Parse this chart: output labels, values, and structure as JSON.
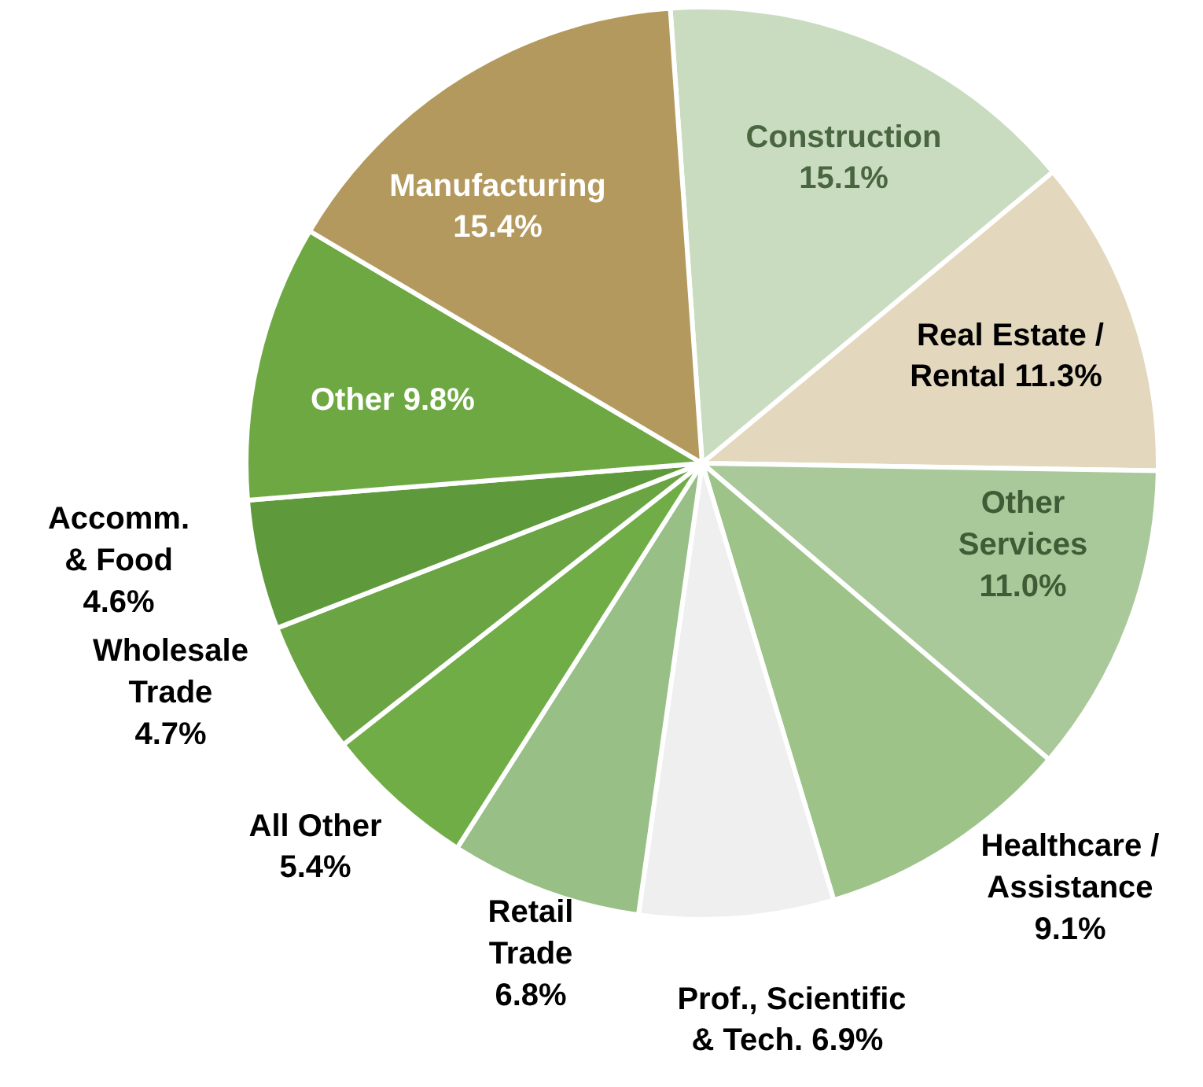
{
  "chart_data": {
    "type": "pie",
    "categories": [
      "Construction",
      "Real Estate /\nRental",
      "Other\nServices",
      "Healthcare /\nAssistance",
      "Prof., Scientific\n& Tech.",
      "Retail\nTrade",
      "All Other",
      "Wholesale\nTrade",
      "Accomm.\n& Food",
      "Other",
      "Manufacturing"
    ],
    "values": [
      15.1,
      11.3,
      11.0,
      9.1,
      6.9,
      6.8,
      5.4,
      4.7,
      4.6,
      9.8,
      15.4
    ],
    "colors": [
      "#c9dcc0",
      "#e3d7bd",
      "#a9c99a",
      "#9dc389",
      "#efefef",
      "#98bf86",
      "#70ad47",
      "#6aa443",
      "#5e9a3b",
      "#6ea843",
      "#b3995d"
    ],
    "value_labels": [
      "15.1%",
      "11.3%",
      "11.0%",
      "9.1%",
      "6.9%",
      "6.8%",
      "5.4%",
      "4.7%",
      "4.6%",
      "9.8%",
      "15.4%"
    ],
    "legend": false
  }
}
